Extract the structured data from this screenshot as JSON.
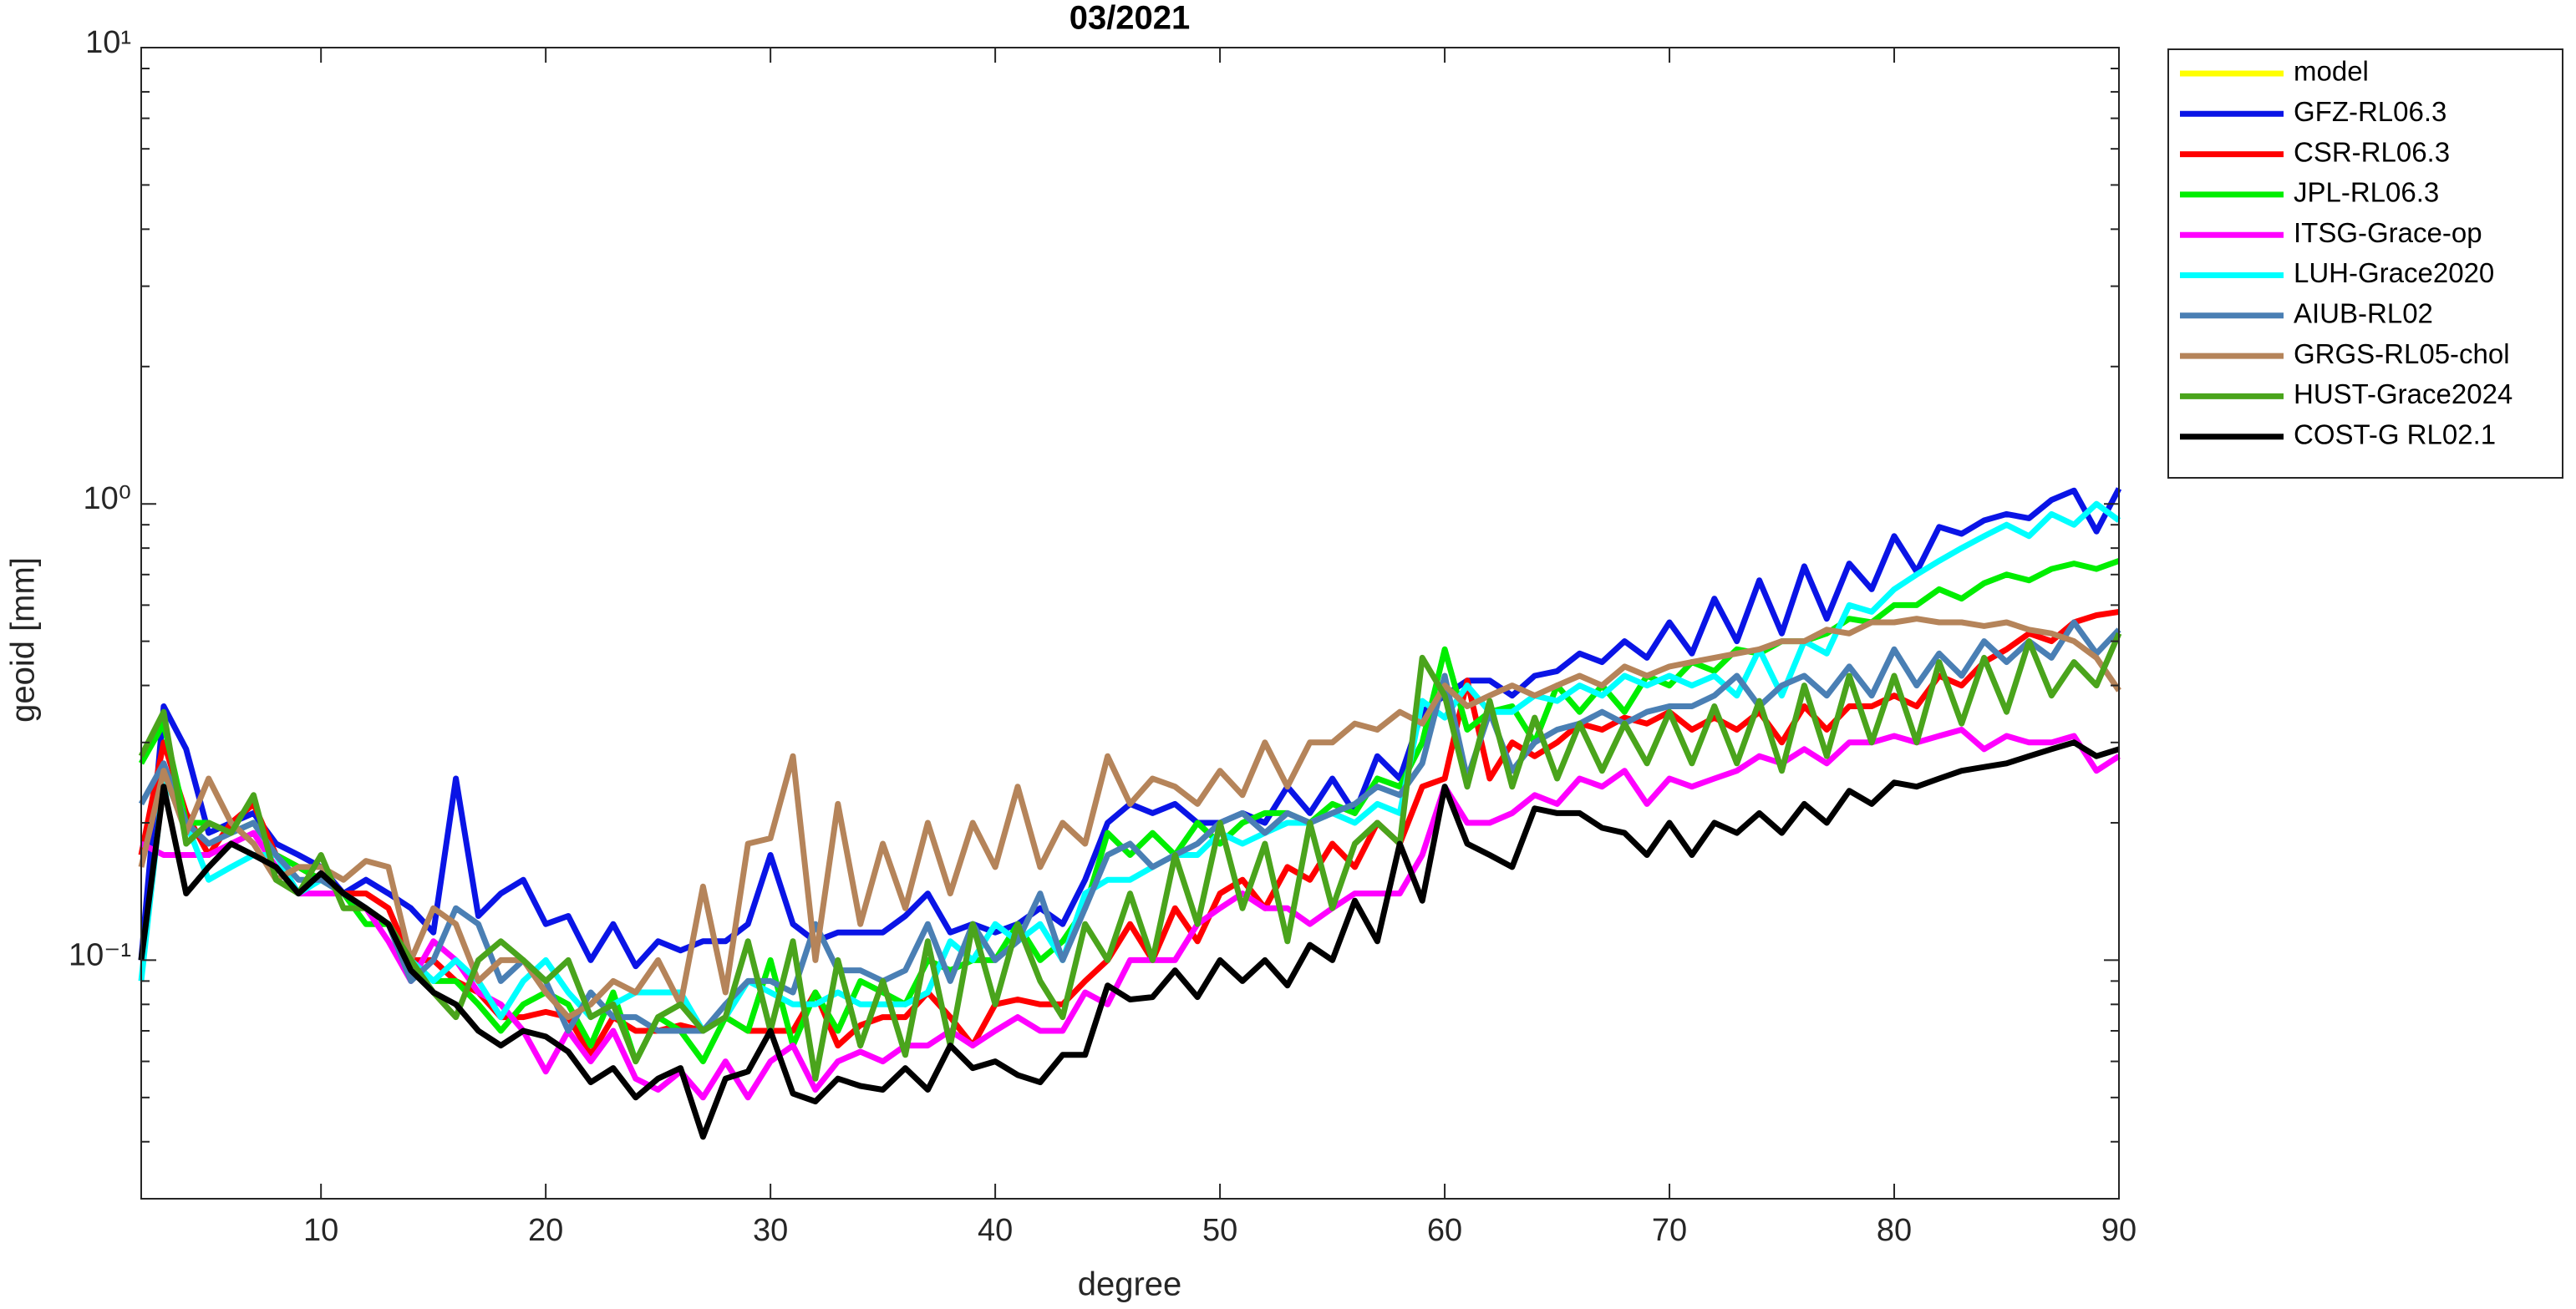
{
  "chart_data": {
    "type": "line",
    "title": "03/2021",
    "xlabel": "degree",
    "ylabel": "geoid [mm]",
    "log_y": true,
    "grid": false,
    "legend": "outside-right",
    "xlim": [
      2,
      90
    ],
    "xticks": [
      10,
      20,
      30,
      40,
      50,
      60,
      70,
      80,
      90
    ],
    "ylim": [
      0.03,
      10
    ],
    "yticks": [
      {
        "value": 0.1,
        "label": "10⁻¹"
      },
      {
        "value": 1,
        "label": "10⁰"
      },
      {
        "value": 10,
        "label": "10¹"
      }
    ],
    "yminorticks": [
      0.04,
      0.05,
      0.06,
      0.07,
      0.08,
      0.09,
      0.2,
      0.3,
      0.4,
      0.5,
      0.6,
      0.7,
      0.8,
      0.9,
      2,
      3,
      4,
      5,
      6,
      7,
      8,
      9
    ],
    "x": [
      2,
      3,
      4,
      5,
      6,
      7,
      8,
      9,
      10,
      11,
      12,
      13,
      14,
      15,
      16,
      17,
      18,
      19,
      20,
      21,
      22,
      23,
      24,
      25,
      26,
      27,
      28,
      29,
      30,
      31,
      32,
      33,
      34,
      35,
      36,
      37,
      38,
      39,
      40,
      41,
      42,
      43,
      44,
      45,
      46,
      47,
      48,
      49,
      50,
      51,
      52,
      53,
      54,
      55,
      56,
      57,
      58,
      59,
      60,
      61,
      62,
      63,
      64,
      65,
      66,
      67,
      68,
      69,
      70,
      71,
      72,
      73,
      74,
      75,
      76,
      77,
      78,
      79,
      80,
      81,
      82,
      83,
      84,
      85,
      86,
      87,
      88,
      89,
      90
    ],
    "series": [
      {
        "name": "model",
        "color": "#ffff00",
        "values": [
          null,
          null,
          null,
          null,
          null,
          null,
          null,
          null,
          null,
          null,
          null,
          null,
          null,
          null,
          null,
          null,
          null,
          null,
          null,
          null,
          null,
          null,
          null,
          null,
          null,
          null,
          null,
          null,
          null,
          null,
          null,
          null,
          null,
          null,
          null,
          null,
          null,
          null,
          null,
          null,
          null,
          null,
          null,
          null,
          null,
          null,
          null,
          null,
          null,
          null,
          null,
          null,
          null,
          null,
          null,
          null,
          null,
          null,
          null,
          null,
          null,
          null,
          null,
          null,
          null,
          null,
          null,
          null,
          null,
          null,
          null,
          null,
          null,
          null,
          null,
          null,
          null,
          null,
          null,
          null,
          null,
          null,
          null,
          null,
          null,
          null,
          null,
          null,
          null
        ]
      },
      {
        "name": "GFZ-RL06.3",
        "color": "#0a14e6",
        "values": [
          0.1,
          0.36,
          0.29,
          0.19,
          0.2,
          0.21,
          0.18,
          0.17,
          0.16,
          0.14,
          0.15,
          0.14,
          0.13,
          0.115,
          0.25,
          0.125,
          0.14,
          0.15,
          0.12,
          0.125,
          0.1,
          0.12,
          0.097,
          0.11,
          0.105,
          0.11,
          0.11,
          0.12,
          0.17,
          0.12,
          0.11,
          0.115,
          0.115,
          0.115,
          0.125,
          0.14,
          0.115,
          0.12,
          0.115,
          0.12,
          0.13,
          0.12,
          0.15,
          0.2,
          0.22,
          0.21,
          0.22,
          0.2,
          0.2,
          0.21,
          0.2,
          0.24,
          0.21,
          0.25,
          0.21,
          0.28,
          0.25,
          0.35,
          0.38,
          0.41,
          0.41,
          0.38,
          0.42,
          0.43,
          0.47,
          0.45,
          0.5,
          0.46,
          0.55,
          0.47,
          0.62,
          0.5,
          0.68,
          0.52,
          0.73,
          0.56,
          0.74,
          0.65,
          0.85,
          0.71,
          0.89,
          0.86,
          0.92,
          0.95,
          0.93,
          1.02,
          1.07,
          0.87,
          1.08
        ]
      },
      {
        "name": "CSR-RL06.3",
        "color": "#ff0000",
        "values": [
          0.17,
          0.3,
          0.21,
          0.17,
          0.2,
          0.22,
          0.17,
          0.16,
          0.15,
          0.14,
          0.14,
          0.13,
          0.1,
          0.1,
          0.09,
          0.085,
          0.075,
          0.075,
          0.077,
          0.075,
          0.062,
          0.075,
          0.07,
          0.07,
          0.072,
          0.07,
          0.075,
          0.07,
          0.07,
          0.07,
          0.085,
          0.065,
          0.072,
          0.075,
          0.075,
          0.085,
          0.075,
          0.065,
          0.08,
          0.082,
          0.08,
          0.08,
          0.09,
          0.1,
          0.12,
          0.1,
          0.13,
          0.11,
          0.14,
          0.15,
          0.13,
          0.16,
          0.15,
          0.18,
          0.16,
          0.2,
          0.18,
          0.24,
          0.25,
          0.41,
          0.25,
          0.3,
          0.28,
          0.3,
          0.33,
          0.32,
          0.34,
          0.33,
          0.35,
          0.32,
          0.34,
          0.32,
          0.35,
          0.3,
          0.36,
          0.32,
          0.36,
          0.36,
          0.38,
          0.36,
          0.42,
          0.4,
          0.45,
          0.48,
          0.52,
          0.5,
          0.55,
          0.57,
          0.58
        ]
      },
      {
        "name": "JPL-RL06.3",
        "color": "#00ee00",
        "values": [
          0.27,
          0.33,
          0.2,
          0.2,
          0.19,
          0.2,
          0.17,
          0.16,
          0.15,
          0.14,
          0.12,
          0.12,
          0.1,
          0.09,
          0.09,
          0.08,
          0.07,
          0.08,
          0.085,
          0.08,
          0.065,
          0.085,
          0.06,
          0.075,
          0.07,
          0.06,
          0.075,
          0.07,
          0.1,
          0.065,
          0.085,
          0.07,
          0.09,
          0.085,
          0.08,
          0.1,
          0.095,
          0.1,
          0.1,
          0.12,
          0.1,
          0.11,
          0.13,
          0.19,
          0.17,
          0.19,
          0.17,
          0.2,
          0.18,
          0.2,
          0.21,
          0.21,
          0.2,
          0.22,
          0.21,
          0.25,
          0.24,
          0.3,
          0.48,
          0.32,
          0.35,
          0.36,
          0.3,
          0.4,
          0.35,
          0.4,
          0.35,
          0.42,
          0.4,
          0.45,
          0.43,
          0.48,
          0.47,
          0.5,
          0.5,
          0.52,
          0.56,
          0.55,
          0.6,
          0.6,
          0.65,
          0.62,
          0.67,
          0.7,
          0.68,
          0.72,
          0.74,
          0.72,
          0.75
        ]
      },
      {
        "name": "ITSG-Grace-op",
        "color": "#ff00ff",
        "values": [
          0.18,
          0.17,
          0.17,
          0.17,
          0.18,
          0.19,
          0.16,
          0.14,
          0.14,
          0.14,
          0.13,
          0.11,
          0.09,
          0.11,
          0.1,
          0.085,
          0.08,
          0.07,
          0.057,
          0.07,
          0.06,
          0.07,
          0.055,
          0.052,
          0.057,
          0.05,
          0.06,
          0.05,
          0.06,
          0.065,
          0.052,
          0.06,
          0.063,
          0.06,
          0.065,
          0.065,
          0.07,
          0.065,
          0.07,
          0.075,
          0.07,
          0.07,
          0.085,
          0.08,
          0.1,
          0.1,
          0.1,
          0.12,
          0.13,
          0.14,
          0.13,
          0.13,
          0.12,
          0.13,
          0.14,
          0.14,
          0.14,
          0.17,
          0.24,
          0.2,
          0.2,
          0.21,
          0.23,
          0.22,
          0.25,
          0.24,
          0.26,
          0.22,
          0.25,
          0.24,
          0.25,
          0.26,
          0.28,
          0.27,
          0.29,
          0.27,
          0.3,
          0.3,
          0.31,
          0.3,
          0.31,
          0.32,
          0.29,
          0.31,
          0.3,
          0.3,
          0.31,
          0.26,
          0.28
        ]
      },
      {
        "name": "LUH-Grace2020",
        "color": "#00ffff",
        "values": [
          0.09,
          0.25,
          0.2,
          0.15,
          0.16,
          0.17,
          0.17,
          0.14,
          0.15,
          0.14,
          0.13,
          0.12,
          0.1,
          0.09,
          0.1,
          0.09,
          0.075,
          0.09,
          0.1,
          0.085,
          0.075,
          0.08,
          0.085,
          0.085,
          0.085,
          0.07,
          0.075,
          0.09,
          0.085,
          0.08,
          0.08,
          0.085,
          0.08,
          0.08,
          0.08,
          0.085,
          0.11,
          0.1,
          0.12,
          0.11,
          0.12,
          0.1,
          0.14,
          0.15,
          0.15,
          0.16,
          0.17,
          0.17,
          0.19,
          0.18,
          0.19,
          0.2,
          0.2,
          0.21,
          0.2,
          0.22,
          0.21,
          0.37,
          0.34,
          0.4,
          0.35,
          0.35,
          0.38,
          0.37,
          0.4,
          0.38,
          0.42,
          0.4,
          0.42,
          0.4,
          0.42,
          0.38,
          0.48,
          0.38,
          0.5,
          0.47,
          0.6,
          0.58,
          0.65,
          0.7,
          0.75,
          0.8,
          0.85,
          0.9,
          0.85,
          0.95,
          0.9,
          1.0,
          0.92
        ]
      },
      {
        "name": "AIUB-RL02",
        "color": "#4a7fb4",
        "values": [
          0.22,
          0.27,
          0.2,
          0.18,
          0.19,
          0.2,
          0.17,
          0.15,
          0.15,
          0.14,
          0.13,
          0.12,
          0.09,
          0.1,
          0.13,
          0.12,
          0.09,
          0.1,
          0.09,
          0.07,
          0.085,
          0.075,
          0.075,
          0.07,
          0.07,
          0.07,
          0.08,
          0.09,
          0.09,
          0.085,
          0.12,
          0.095,
          0.095,
          0.09,
          0.095,
          0.12,
          0.09,
          0.12,
          0.1,
          0.11,
          0.14,
          0.1,
          0.13,
          0.17,
          0.18,
          0.16,
          0.17,
          0.18,
          0.2,
          0.21,
          0.19,
          0.21,
          0.2,
          0.21,
          0.22,
          0.24,
          0.23,
          0.27,
          0.42,
          0.25,
          0.35,
          0.26,
          0.3,
          0.32,
          0.33,
          0.35,
          0.33,
          0.35,
          0.36,
          0.36,
          0.38,
          0.42,
          0.36,
          0.4,
          0.42,
          0.38,
          0.44,
          0.38,
          0.48,
          0.4,
          0.47,
          0.42,
          0.5,
          0.45,
          0.5,
          0.46,
          0.55,
          0.47,
          0.53
        ]
      },
      {
        "name": "GRGS-RL05-chol",
        "color": "#b5845a",
        "values": [
          0.16,
          0.26,
          0.19,
          0.25,
          0.2,
          0.18,
          0.15,
          0.16,
          0.16,
          0.15,
          0.165,
          0.16,
          0.1,
          0.13,
          0.12,
          0.09,
          0.1,
          0.1,
          0.085,
          0.075,
          0.08,
          0.09,
          0.085,
          0.1,
          0.08,
          0.145,
          0.085,
          0.18,
          0.185,
          0.28,
          0.1,
          0.22,
          0.12,
          0.18,
          0.13,
          0.2,
          0.14,
          0.2,
          0.16,
          0.24,
          0.16,
          0.2,
          0.18,
          0.28,
          0.22,
          0.25,
          0.24,
          0.22,
          0.26,
          0.23,
          0.3,
          0.24,
          0.3,
          0.3,
          0.33,
          0.32,
          0.35,
          0.33,
          0.4,
          0.36,
          0.38,
          0.4,
          0.38,
          0.4,
          0.42,
          0.4,
          0.44,
          0.42,
          0.44,
          0.45,
          0.46,
          0.47,
          0.48,
          0.5,
          0.5,
          0.53,
          0.52,
          0.55,
          0.55,
          0.56,
          0.55,
          0.55,
          0.54,
          0.55,
          0.53,
          0.52,
          0.5,
          0.46,
          0.39
        ]
      },
      {
        "name": "HUST-Grace2024",
        "color": "#4aa41c",
        "values": [
          0.28,
          0.35,
          0.18,
          0.2,
          0.19,
          0.23,
          0.15,
          0.14,
          0.17,
          0.13,
          0.13,
          0.12,
          0.1,
          0.085,
          0.075,
          0.1,
          0.11,
          0.1,
          0.09,
          0.1,
          0.075,
          0.08,
          0.06,
          0.075,
          0.08,
          0.07,
          0.075,
          0.11,
          0.07,
          0.11,
          0.055,
          0.1,
          0.065,
          0.09,
          0.062,
          0.11,
          0.065,
          0.12,
          0.08,
          0.12,
          0.09,
          0.075,
          0.12,
          0.1,
          0.14,
          0.1,
          0.17,
          0.12,
          0.2,
          0.13,
          0.18,
          0.11,
          0.2,
          0.13,
          0.18,
          0.2,
          0.18,
          0.46,
          0.38,
          0.24,
          0.37,
          0.24,
          0.34,
          0.25,
          0.33,
          0.26,
          0.33,
          0.27,
          0.35,
          0.27,
          0.36,
          0.27,
          0.37,
          0.26,
          0.4,
          0.28,
          0.42,
          0.3,
          0.42,
          0.3,
          0.45,
          0.33,
          0.46,
          0.35,
          0.5,
          0.38,
          0.45,
          0.4,
          0.52
        ]
      },
      {
        "name": "COST-G RL02.1",
        "color": "#000000",
        "values": [
          0.1,
          0.24,
          0.14,
          0.16,
          0.18,
          0.17,
          0.16,
          0.14,
          0.155,
          0.14,
          0.13,
          0.12,
          0.095,
          0.085,
          0.08,
          0.07,
          0.065,
          0.07,
          0.068,
          0.063,
          0.054,
          0.058,
          0.05,
          0.055,
          0.058,
          0.041,
          0.055,
          0.057,
          0.07,
          0.051,
          0.049,
          0.055,
          0.053,
          0.052,
          0.058,
          0.052,
          0.065,
          0.058,
          0.06,
          0.056,
          0.054,
          0.062,
          0.062,
          0.088,
          0.082,
          0.083,
          0.095,
          0.083,
          0.1,
          0.09,
          0.1,
          0.088,
          0.108,
          0.1,
          0.135,
          0.11,
          0.18,
          0.135,
          0.24,
          0.18,
          0.17,
          0.16,
          0.215,
          0.21,
          0.21,
          0.195,
          0.19,
          0.17,
          0.2,
          0.17,
          0.2,
          0.19,
          0.21,
          0.19,
          0.22,
          0.2,
          0.235,
          0.22,
          0.245,
          0.24,
          0.25,
          0.26,
          0.265,
          0.27,
          0.28,
          0.29,
          0.3,
          0.28,
          0.29
        ]
      }
    ]
  }
}
